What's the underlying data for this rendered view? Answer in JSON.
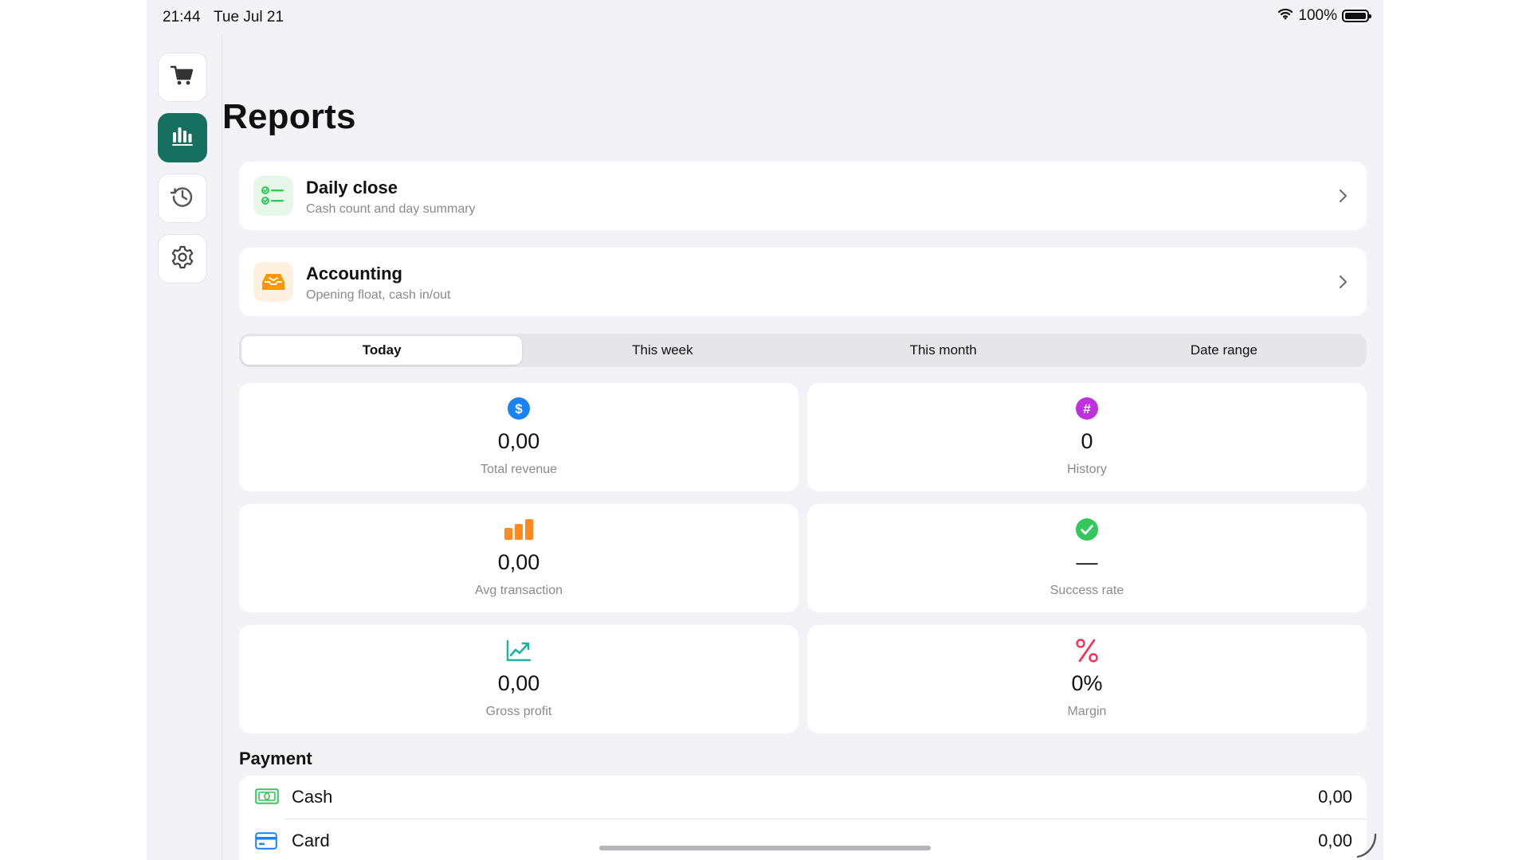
{
  "status_bar": {
    "time": "21:44",
    "date": "Tue Jul 21",
    "battery": "100%"
  },
  "sidebar": {
    "items": [
      {
        "name": "cart",
        "icon": "cart-icon",
        "active": false
      },
      {
        "name": "reports",
        "icon": "bar-chart-icon",
        "active": true
      },
      {
        "name": "history",
        "icon": "history-icon",
        "active": false
      },
      {
        "name": "settings",
        "icon": "gear-icon",
        "active": false
      }
    ],
    "accent": "#17705f"
  },
  "page": {
    "title": "Reports"
  },
  "nav_cards": {
    "daily_close": {
      "title": "Daily close",
      "subtitle": "Cash count and day summary",
      "icon": "checklist-icon",
      "color": "#34c759"
    },
    "accounting": {
      "title": "Accounting",
      "subtitle": "Opening float, cash in/out",
      "icon": "tray-icon",
      "color": "#ff9500"
    }
  },
  "period": {
    "options": [
      "Today",
      "This week",
      "This month",
      "Date range"
    ],
    "selected": "Today"
  },
  "stats": {
    "total_revenue": {
      "value": "0,00",
      "label": "Total revenue",
      "icon": "dollar-icon",
      "color": "#1a82f7"
    },
    "history": {
      "value": "0",
      "label": "History",
      "icon": "hash-icon",
      "color": "#c130e0"
    },
    "avg_transaction": {
      "value": "0,00",
      "label": "Avg transaction",
      "icon": "bars-icon",
      "color": "#ff8a1f"
    },
    "success_rate": {
      "value": "—",
      "label": "Success rate",
      "icon": "check-circle-icon",
      "color": "#34c759"
    },
    "gross_profit": {
      "value": "0,00",
      "label": "Gross profit",
      "icon": "trend-up-icon",
      "color": "#1bb3a0"
    },
    "margin": {
      "value": "0%",
      "label": "Margin",
      "icon": "percent-icon",
      "color": "#ff2d55"
    }
  },
  "payment": {
    "heading": "Payment",
    "items": [
      {
        "name": "Cash",
        "value": "0,00",
        "icon": "banknote-icon",
        "color": "#34c759"
      },
      {
        "name": "Card",
        "value": "0,00",
        "icon": "credit-card-icon",
        "color": "#1a82f7"
      }
    ]
  }
}
